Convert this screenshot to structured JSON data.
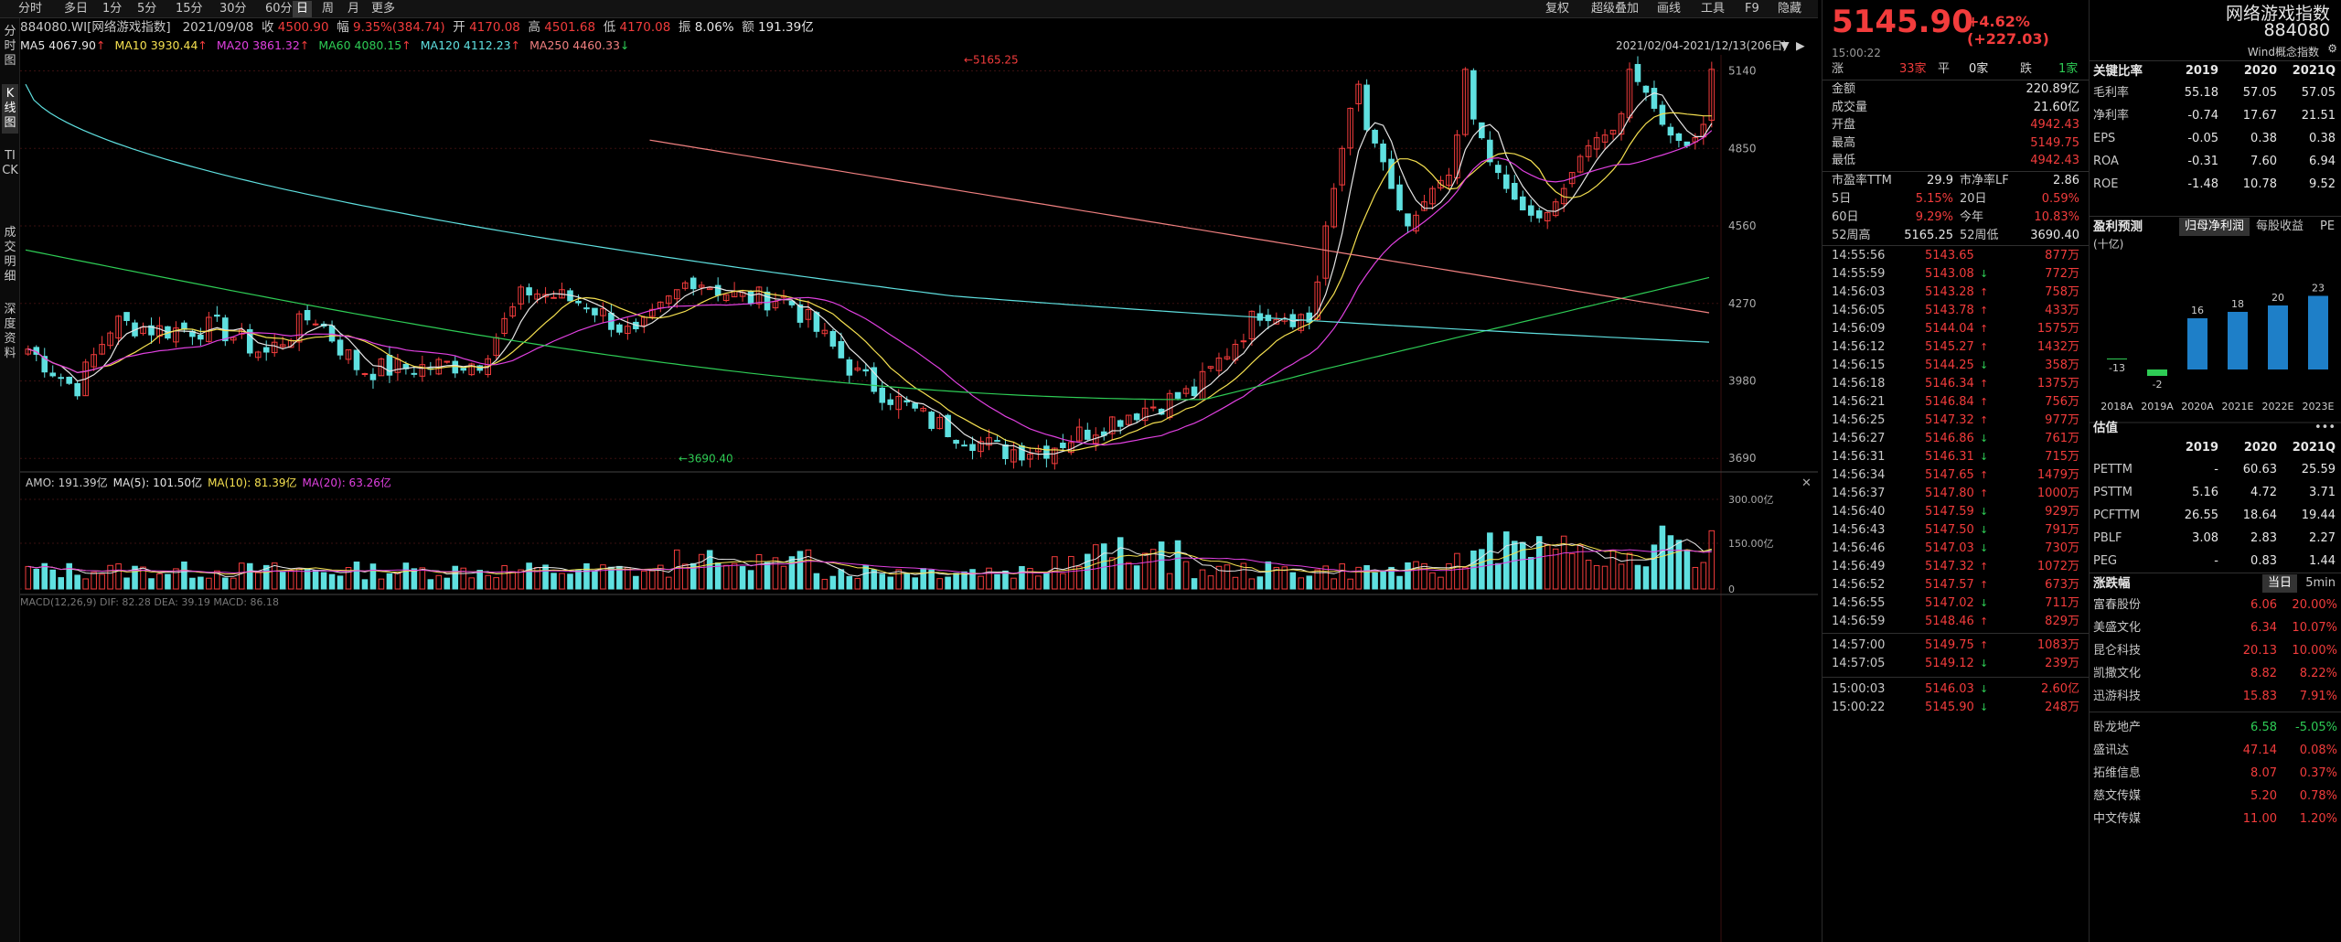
{
  "toolbar": {
    "periods": [
      "分时",
      "多日",
      "1分",
      "5分",
      "15分",
      "30分",
      "60分",
      "日",
      "周",
      "月",
      "更多"
    ],
    "active_period": "日",
    "right": [
      "复权",
      "超级叠加",
      "画线",
      "工具",
      "F9",
      "隐藏"
    ]
  },
  "left_tabs": [
    "分时图",
    "K线图",
    "TICK",
    "成交明细",
    "深度资料"
  ],
  "left_tab_active": "K线图",
  "info": {
    "code": "884080.WI[网络游戏指数]",
    "date": "2021/09/08",
    "close_label": "收",
    "close": "4500.90",
    "amp_label": "幅",
    "change": "9.35%(384.74)",
    "open_label": "开",
    "open": "4170.08",
    "high_label": "高",
    "high": "4501.68",
    "low_label": "低",
    "low": "4170.08",
    "swing_label": "振",
    "swing": "8.06%",
    "amount_label": "额",
    "amount": "191.39亿"
  },
  "ma": [
    {
      "label": "MA5",
      "value": "4067.90",
      "arrow": "↑",
      "color": "#e6e6e6"
    },
    {
      "label": "MA10",
      "value": "3930.44",
      "arrow": "↑",
      "color": "#f5e050"
    },
    {
      "label": "MA20",
      "value": "3861.32",
      "arrow": "↑",
      "color": "#e040e0"
    },
    {
      "label": "MA60",
      "value": "4080.15",
      "arrow": "↑",
      "color": "#2ecc55"
    },
    {
      "label": "MA120",
      "value": "4112.23",
      "arrow": "↑",
      "color": "#5fe0e0"
    },
    {
      "label": "MA250",
      "value": "4460.33",
      "arrow": "↓",
      "color": "#f08080"
    }
  ],
  "range_text": "2021/02/04-2021/12/13(206日)",
  "y_labels": [
    "5140",
    "4850",
    "4560",
    "4270",
    "3980",
    "3690"
  ],
  "max_label": "5165.25",
  "min_label": "3690.40",
  "vol_info": {
    "amo": "AMO: 191.39亿",
    "ma5": "MA(5): 101.50亿",
    "ma10": "MA(10): 81.39亿",
    "ma20": "MA(20): 63.26亿"
  },
  "vol_labels": [
    "300.00亿",
    "150.00亿",
    "0"
  ],
  "bottom_info": "MACD(12,26,9) DIF: 82.28 DEA: 39.19 MACD: 86.18",
  "quote": {
    "price": "5145.90",
    "change": "+4.62%",
    "change_abs": "(+227.03)",
    "time": "15:00:22",
    "rise_label": "涨",
    "rise": "33家",
    "flat_label": "平",
    "flat": "0家",
    "fall_label": "跌",
    "fall": "1家",
    "stats": [
      {
        "label": "金额",
        "value": "220.89亿",
        "cls": "white"
      },
      {
        "label": "成交量",
        "value": "21.60亿",
        "cls": "white"
      },
      {
        "label": "开盘",
        "value": "4942.43",
        "cls": "red"
      },
      {
        "label": "最高",
        "value": "5149.75",
        "cls": "red"
      },
      {
        "label": "最低",
        "value": "4942.43",
        "cls": "red"
      }
    ],
    "pe_rows": [
      [
        "市盈率TTM",
        "29.9",
        "市净率LF",
        "2.86"
      ],
      [
        "5日",
        "5.15%",
        "20日",
        "0.59%"
      ],
      [
        "60日",
        "9.29%",
        "今年",
        "10.83%"
      ],
      [
        "52周高",
        "5165.25",
        "52周低",
        "3690.40"
      ]
    ],
    "ticks": [
      [
        "14:55:56",
        "5143.65",
        "",
        "877万"
      ],
      [
        "14:55:59",
        "5143.08",
        "↓",
        "772万"
      ],
      [
        "14:56:03",
        "5143.28",
        "↑",
        "758万"
      ],
      [
        "14:56:05",
        "5143.78",
        "↑",
        "433万"
      ],
      [
        "14:56:09",
        "5144.04",
        "↑",
        "1575万"
      ],
      [
        "14:56:12",
        "5145.27",
        "↑",
        "1432万"
      ],
      [
        "14:56:15",
        "5144.25",
        "↓",
        "358万"
      ],
      [
        "14:56:18",
        "5146.34",
        "↑",
        "1375万"
      ],
      [
        "14:56:21",
        "5146.84",
        "↑",
        "756万"
      ],
      [
        "14:56:25",
        "5147.32",
        "↑",
        "977万"
      ],
      [
        "14:56:27",
        "5146.86",
        "↓",
        "761万"
      ],
      [
        "14:56:31",
        "5146.31",
        "↓",
        "715万"
      ],
      [
        "14:56:34",
        "5147.65",
        "↑",
        "1479万"
      ],
      [
        "14:56:37",
        "5147.80",
        "↑",
        "1000万"
      ],
      [
        "14:56:40",
        "5147.59",
        "↓",
        "929万"
      ],
      [
        "14:56:43",
        "5147.50",
        "↓",
        "791万"
      ],
      [
        "14:56:46",
        "5147.03",
        "↓",
        "730万"
      ],
      [
        "14:56:49",
        "5147.32",
        "↑",
        "1072万"
      ],
      [
        "14:56:52",
        "5147.57",
        "↑",
        "673万"
      ],
      [
        "14:56:55",
        "5147.02",
        "↓",
        "711万"
      ],
      [
        "14:56:59",
        "5148.46",
        "↑",
        "829万"
      ],
      [
        "14:57:00",
        "5149.75",
        "↑",
        "1083万"
      ],
      [
        "14:57:05",
        "5149.12",
        "↓",
        "239万"
      ],
      [
        "15:00:03",
        "5146.03",
        "↓",
        "2.60亿"
      ],
      [
        "15:00:22",
        "5145.90",
        "↓",
        "248万"
      ]
    ]
  },
  "side": {
    "name": "网络游戏指数",
    "code": "884080",
    "concept": "Wind概念指数",
    "ratio_title": "关键比率",
    "ratio_cols": [
      "2019",
      "2020",
      "2021Q"
    ],
    "ratios": [
      [
        "毛利率",
        "55.18",
        "57.05",
        "57.05"
      ],
      [
        "净利率",
        "-0.74",
        "17.67",
        "21.51"
      ],
      [
        "EPS",
        "-0.05",
        "0.38",
        "0.38"
      ],
      [
        "ROA",
        "-0.31",
        "7.60",
        "6.94"
      ],
      [
        "ROE",
        "-1.48",
        "10.78",
        "9.52"
      ]
    ],
    "forecast_title": "盈利预测",
    "forecast_tabs": [
      "归母净利润",
      "每股收益",
      "PE"
    ],
    "forecast_unit": "(十亿)",
    "forecast": {
      "years": [
        "2018A",
        "2019A",
        "2020A",
        "2021E",
        "2022E",
        "2023E"
      ],
      "values": [
        -13,
        -2,
        16,
        18,
        20,
        23
      ],
      "labels": [
        "-13",
        "-2",
        "16",
        "18",
        "20",
        "23"
      ]
    },
    "val_title": "估值",
    "val_cols": [
      "2019",
      "2020",
      "2021Q"
    ],
    "valuation": [
      [
        "PETTM",
        "-",
        "60.63",
        "25.59"
      ],
      [
        "PSTTM",
        "5.16",
        "4.72",
        "3.71"
      ],
      [
        "PCFTTM",
        "26.55",
        "18.64",
        "19.44"
      ],
      [
        "PBLF",
        "3.08",
        "2.83",
        "2.27"
      ],
      [
        "PEG",
        "-",
        "0.83",
        "1.44"
      ]
    ],
    "mover_title": "涨跌幅",
    "mover_tabs": [
      "当日",
      "5min"
    ],
    "gainers": [
      [
        "富春股份",
        "6.06",
        "20.00%"
      ],
      [
        "美盛文化",
        "6.34",
        "10.07%"
      ],
      [
        "昆仑科技",
        "20.13",
        "10.00%"
      ],
      [
        "凯撒文化",
        "8.82",
        "8.22%"
      ],
      [
        "迅游科技",
        "15.83",
        "7.91%"
      ]
    ],
    "losers": [
      [
        "卧龙地产",
        "6.58",
        "-5.05%"
      ],
      [
        "盛讯达",
        "47.14",
        "0.08%"
      ],
      [
        "拓维信息",
        "8.07",
        "0.37%"
      ],
      [
        "慈文传媒",
        "5.20",
        "0.78%"
      ],
      [
        "中文传媒",
        "11.00",
        "1.20%"
      ]
    ]
  },
  "colors": {
    "up": "#f23c3c",
    "down": "#5fe0e0",
    "grid": "#3a1010"
  }
}
